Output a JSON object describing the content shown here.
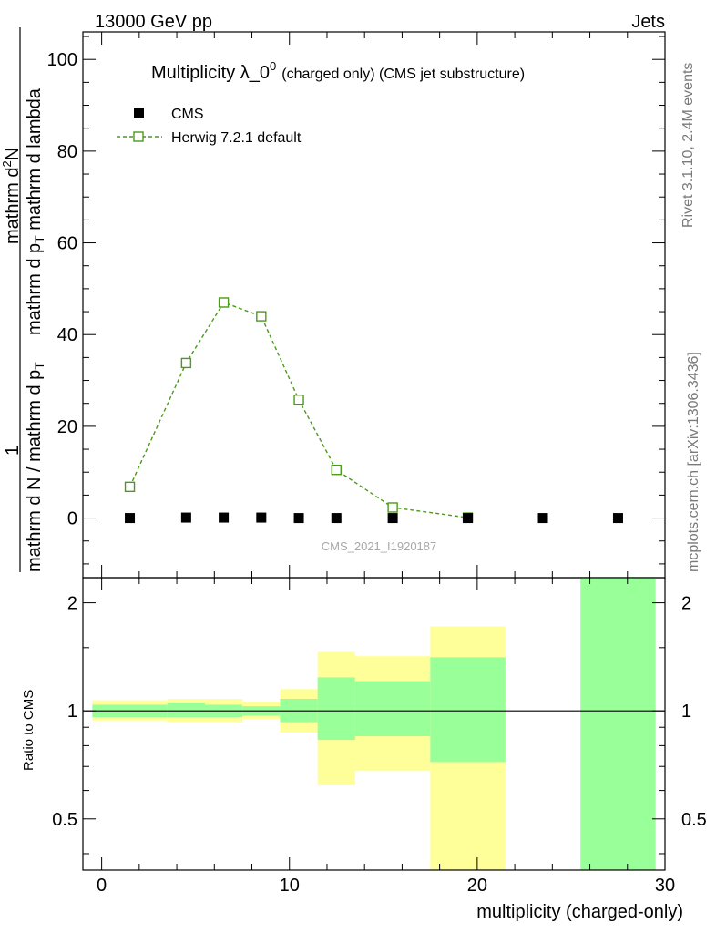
{
  "header": {
    "left": "13000 GeV pp",
    "right": "Jets"
  },
  "side_labels": {
    "top": "Rivet 3.1.10,  2.4M events",
    "bottom": "mcplots.cern.ch [arXiv:1306.3436]"
  },
  "chart_data": [
    {
      "type": "scatter",
      "title": "Multiplicity λ_0",
      "title_superscript": "0",
      "title_suffix": "(charged only) (CMS jet substructure)",
      "watermark": "CMS_2021_I1920187",
      "ylabel": {
        "numerator": "1",
        "denominator": "mathrm d N / mathrm d p",
        "denominator_sub": "T",
        "numerator2": "mathrm d",
        "numerator2_sup": "2",
        "numerator2_tail": "N",
        "denominator2": "mathrm d p",
        "denominator2_sub": "T",
        "denominator2_tail": " mathrm d lambda"
      },
      "xlim": [
        -1,
        30
      ],
      "ylim": [
        -13,
        106
      ],
      "y_ticks": [
        0,
        20,
        40,
        60,
        80,
        100
      ],
      "legend_position": "top-left",
      "series": [
        {
          "name": "CMS",
          "color": "#000000",
          "marker": "filled-square",
          "x": [
            1.5,
            4.5,
            6.5,
            8.5,
            10.5,
            12.5,
            15.5,
            19.5,
            23.5,
            27.5
          ],
          "y": [
            0,
            0.1,
            0.1,
            0.1,
            0,
            0,
            0,
            0,
            0,
            0
          ]
        },
        {
          "name": "Herwig 7.2.1 default",
          "color": "#4c9a1a",
          "marker": "open-square",
          "line": "dashed",
          "x": [
            1.5,
            4.5,
            6.5,
            8.5,
            10.5,
            12.5,
            15.5,
            19.5
          ],
          "y": [
            6.8,
            33.8,
            47.0,
            44.0,
            25.8,
            10.5,
            2.3,
            0.1
          ]
        }
      ]
    },
    {
      "type": "area",
      "ylabel": "Ratio to CMS",
      "xlabel": "multiplicity (charged-only)",
      "xlim": [
        -1,
        30
      ],
      "ylim": [
        0.36,
        2.35
      ],
      "log_y": true,
      "x_ticks": [
        0,
        10,
        20,
        30
      ],
      "y_ticks": [
        0.5,
        1,
        2
      ],
      "reference_line": 1,
      "band_colors": {
        "outer": "#ffff99",
        "inner": "#99ff99"
      },
      "bands": [
        {
          "x0": -0.5,
          "x1": 3.5,
          "outer": [
            0.94,
            1.07
          ],
          "inner": [
            0.96,
            1.04
          ]
        },
        {
          "x0": 3.5,
          "x1": 5.5,
          "outer": [
            0.93,
            1.08
          ],
          "inner": [
            0.96,
            1.05
          ]
        },
        {
          "x0": 5.5,
          "x1": 7.5,
          "outer": [
            0.93,
            1.08
          ],
          "inner": [
            0.96,
            1.04
          ]
        },
        {
          "x0": 7.5,
          "x1": 9.5,
          "outer": [
            0.95,
            1.06
          ],
          "inner": [
            0.97,
            1.03
          ]
        },
        {
          "x0": 9.5,
          "x1": 11.5,
          "outer": [
            0.87,
            1.15
          ],
          "inner": [
            0.93,
            1.08
          ]
        },
        {
          "x0": 11.5,
          "x1": 13.5,
          "outer": [
            0.62,
            1.46
          ],
          "inner": [
            0.83,
            1.24
          ]
        },
        {
          "x0": 13.5,
          "x1": 17.5,
          "outer": [
            0.68,
            1.42
          ],
          "inner": [
            0.85,
            1.21
          ]
        },
        {
          "x0": 17.5,
          "x1": 21.5,
          "outer": [
            0.36,
            1.72
          ],
          "inner": [
            0.72,
            1.41
          ]
        },
        {
          "x0": 25.5,
          "x1": 29.5,
          "outer": [
            0.36,
            2.35
          ],
          "inner": [
            0.36,
            2.35
          ]
        }
      ]
    }
  ]
}
